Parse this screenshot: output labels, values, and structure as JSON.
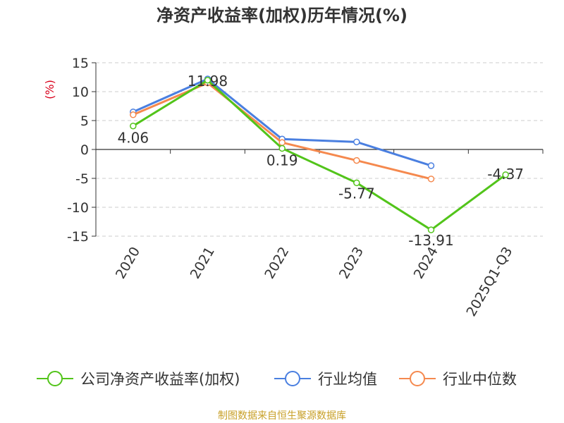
{
  "chart_data": {
    "type": "line",
    "title": "净资产收益率(加权)历年情况(%)",
    "ylabel": "(%)",
    "xlabel": "",
    "categories": [
      "2020",
      "2021",
      "2022",
      "2023",
      "2024",
      "2025Q1-Q3"
    ],
    "ylim": [
      -15,
      15
    ],
    "yticks": [
      15,
      10,
      5,
      0,
      -5,
      -10,
      -15
    ],
    "grid": true,
    "legend_position": "bottom",
    "series": [
      {
        "name": "公司净资产收益率(加权)",
        "color": "#52c41a",
        "values": [
          4.06,
          11.98,
          0.19,
          -5.77,
          -13.91,
          -4.37
        ],
        "labels": [
          "4.06",
          "11.98",
          "0.19",
          "-5.77",
          "-13.91",
          "-4.37"
        ]
      },
      {
        "name": "行业均值",
        "color": "#4a7fe0",
        "values": [
          6.5,
          12.2,
          1.8,
          1.3,
          -2.8,
          null
        ]
      },
      {
        "name": "行业中位数",
        "color": "#f5894e",
        "values": [
          6.0,
          11.5,
          1.2,
          -1.9,
          -5.1,
          null
        ]
      }
    ]
  },
  "source": "制图数据来自恒生聚源数据库",
  "colors": {
    "ylabel": "#d9001b",
    "source": "#c8a028",
    "axis": "#333333",
    "grid": "#cccccc"
  }
}
